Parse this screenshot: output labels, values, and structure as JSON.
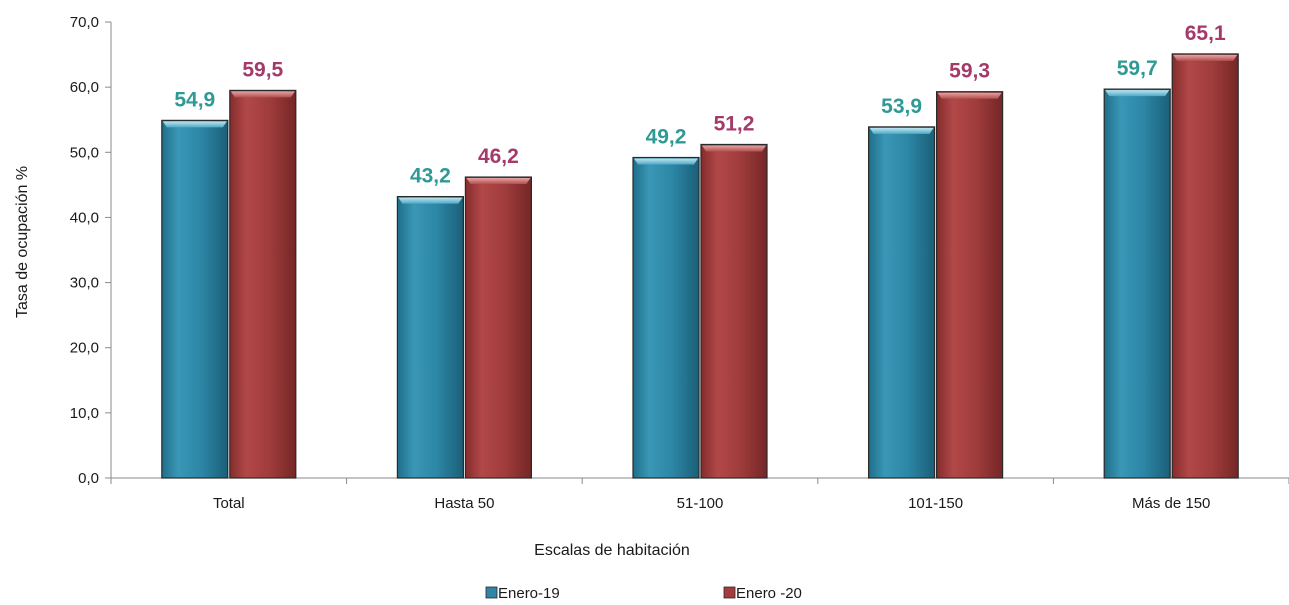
{
  "chart_data": {
    "type": "bar",
    "title": "",
    "xlabel": "Escalas de habitación",
    "ylabel": "Tasa de ocupación %",
    "categories": [
      "Total",
      "Hasta 50",
      "51-100",
      "101-150",
      "Más de 150"
    ],
    "series": [
      {
        "name": "Enero-19",
        "values": [
          54.9,
          43.2,
          49.2,
          53.9,
          59.7
        ],
        "labels": [
          "54,9",
          "43,2",
          "49,2",
          "53,9",
          "59,7"
        ],
        "color": "#2e86a4",
        "label_color": "#2f9a95"
      },
      {
        "name": "Enero -20",
        "values": [
          59.5,
          46.2,
          51.2,
          59.3,
          65.1
        ],
        "labels": [
          "59,5",
          "46,2",
          "51,2",
          "59,3",
          "65,1"
        ],
        "color": "#a33c3c",
        "label_color": "#a33a6a"
      }
    ],
    "ylim": [
      0,
      70
    ],
    "yticks": [
      0,
      10,
      20,
      30,
      40,
      50,
      60,
      70
    ],
    "ytick_labels": [
      "0,0",
      "10,0",
      "20,0",
      "30,0",
      "40,0",
      "50,0",
      "60,0",
      "70,0"
    ],
    "grid": false,
    "legend_position": "bottom"
  }
}
